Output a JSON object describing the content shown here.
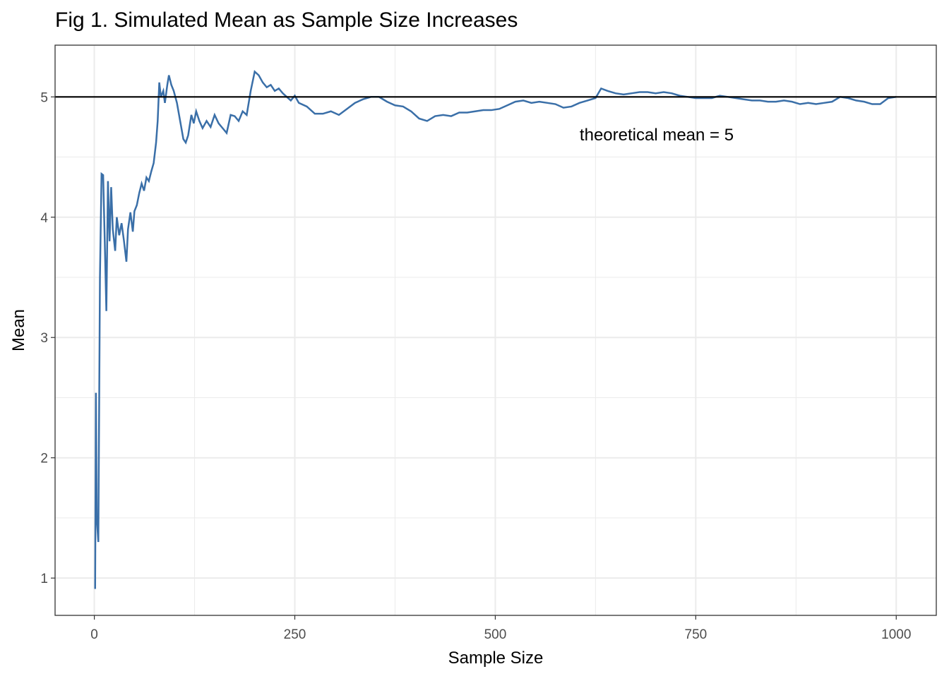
{
  "chart_data": {
    "type": "line",
    "title": "Fig 1. Simulated Mean as Sample Size Increases",
    "xlabel": "Sample Size",
    "ylabel": "Mean",
    "annotation": "theoretical mean = 5",
    "hline": 5,
    "color": "#3a6fa8",
    "x": [
      1,
      2,
      3,
      5,
      7,
      9,
      11,
      13,
      15,
      17,
      19,
      21,
      23,
      26,
      28,
      31,
      34,
      37,
      40,
      42,
      45,
      48,
      50,
      53,
      56,
      59,
      62,
      65,
      68,
      71,
      74,
      77,
      79,
      81,
      83,
      86,
      88,
      91,
      93,
      96,
      99,
      103,
      107,
      111,
      114,
      117,
      121,
      124,
      127,
      131,
      135,
      140,
      145,
      150,
      155,
      160,
      165,
      170,
      175,
      180,
      185,
      190,
      195,
      200,
      205,
      210,
      215,
      220,
      225,
      230,
      235,
      240,
      245,
      250,
      255,
      265,
      275,
      285,
      295,
      305,
      315,
      325,
      335,
      345,
      355,
      365,
      375,
      385,
      395,
      405,
      415,
      425,
      435,
      445,
      455,
      465,
      475,
      485,
      495,
      505,
      515,
      525,
      535,
      545,
      555,
      565,
      575,
      585,
      595,
      605,
      615,
      625,
      632,
      640,
      650,
      660,
      670,
      680,
      690,
      700,
      710,
      720,
      730,
      740,
      750,
      760,
      770,
      780,
      790,
      800,
      810,
      820,
      830,
      840,
      850,
      860,
      870,
      880,
      890,
      900,
      910,
      920,
      930,
      940,
      950,
      960,
      970,
      980,
      990,
      1000
    ],
    "values": [
      0.91,
      2.54,
      1.5,
      1.3,
      3.5,
      4.36,
      4.35,
      3.8,
      3.22,
      4.3,
      3.8,
      4.25,
      3.9,
      3.72,
      4.0,
      3.85,
      3.95,
      3.8,
      3.63,
      3.9,
      4.04,
      3.88,
      4.05,
      4.1,
      4.2,
      4.28,
      4.22,
      4.33,
      4.3,
      4.38,
      4.45,
      4.62,
      4.8,
      5.12,
      5.0,
      5.05,
      4.95,
      5.1,
      5.18,
      5.1,
      5.05,
      4.95,
      4.8,
      4.65,
      4.62,
      4.68,
      4.85,
      4.78,
      4.88,
      4.8,
      4.74,
      4.8,
      4.75,
      4.85,
      4.78,
      4.74,
      4.7,
      4.85,
      4.84,
      4.8,
      4.88,
      4.85,
      5.05,
      5.21,
      5.18,
      5.12,
      5.08,
      5.1,
      5.05,
      5.07,
      5.03,
      5.0,
      4.97,
      5.01,
      4.95,
      4.92,
      4.86,
      4.86,
      4.88,
      4.85,
      4.9,
      4.95,
      4.98,
      5.0,
      5.0,
      4.96,
      4.93,
      4.92,
      4.88,
      4.82,
      4.8,
      4.84,
      4.85,
      4.84,
      4.87,
      4.87,
      4.88,
      4.89,
      4.89,
      4.9,
      4.93,
      4.96,
      4.97,
      4.95,
      4.96,
      4.95,
      4.94,
      4.91,
      4.92,
      4.95,
      4.97,
      4.99,
      5.07,
      5.05,
      5.03,
      5.02,
      5.03,
      5.04,
      5.04,
      5.03,
      5.04,
      5.03,
      5.01,
      5.0,
      4.99,
      4.99,
      4.99,
      5.01,
      5.0,
      4.99,
      4.98,
      4.97,
      4.97,
      4.96,
      4.96,
      4.97,
      4.96,
      4.94,
      4.95,
      4.94,
      4.95,
      4.96,
      5.0,
      4.99,
      4.97,
      4.96,
      4.94,
      4.94,
      4.99,
      5.0
    ],
    "xlim": [
      -48.95,
      1049.95
    ],
    "ylim": [
      0.69,
      5.43
    ],
    "xticks": [
      0,
      250,
      500,
      750,
      1000
    ],
    "yticks": [
      1,
      2,
      3,
      4,
      5
    ],
    "grid": true
  }
}
